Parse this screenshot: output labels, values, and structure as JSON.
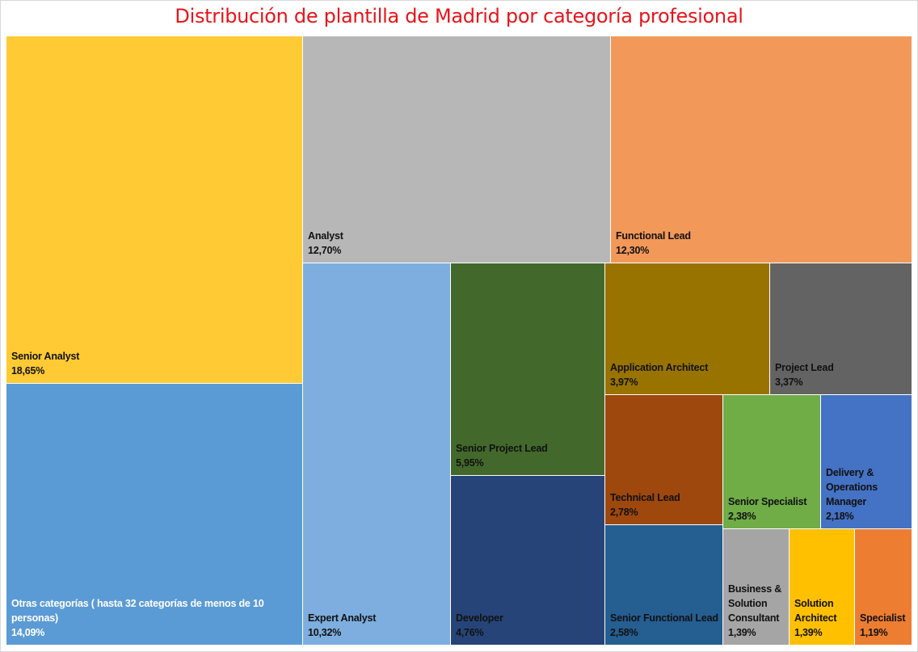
{
  "chart_data": {
    "type": "treemap",
    "title": "Distribución de plantilla de Madrid por categoría profesional",
    "title_color": "#e8141b",
    "items": [
      {
        "name": "Senior Analyst",
        "value": "18,65%",
        "color": "#ffca33"
      },
      {
        "name": "Otras categorías ( hasta 32 categorías de menos de 10 personas)",
        "value": "14,09%",
        "color": "#5b9bd5"
      },
      {
        "name": "Analyst",
        "value": "12,70%",
        "color": "#b7b7b7"
      },
      {
        "name": "Functional Lead",
        "value": "12,30%",
        "color": "#f29859"
      },
      {
        "name": "Expert Analyst",
        "value": "10,32%",
        "color": "#7daedf"
      },
      {
        "name": "Senior Project Lead",
        "value": "5,95%",
        "color": "#43682b"
      },
      {
        "name": "Developer",
        "value": "4,76%",
        "color": "#264478"
      },
      {
        "name": "Application Architect",
        "value": "3,97%",
        "color": "#997300"
      },
      {
        "name": "Project Lead",
        "value": "3,37%",
        "color": "#636363"
      },
      {
        "name": "Technical Lead",
        "value": "2,78%",
        "color": "#9e480e"
      },
      {
        "name": "Senior Functional Lead",
        "value": "2,58%",
        "color": "#255e91"
      },
      {
        "name": "Senior Specialist",
        "value": "2,38%",
        "color": "#70ad47"
      },
      {
        "name": "Delivery & Operations Manager",
        "value": "2,18%",
        "color": "#4472c4"
      },
      {
        "name": "Business & Solution Consultant",
        "value": "1,39%",
        "color": "#a5a5a5"
      },
      {
        "name": "Solution Architect",
        "value": "1,39%",
        "color": "#ffc000"
      },
      {
        "name": "Specialist",
        "value": "1,19%",
        "color": "#ed7d31"
      }
    ]
  }
}
